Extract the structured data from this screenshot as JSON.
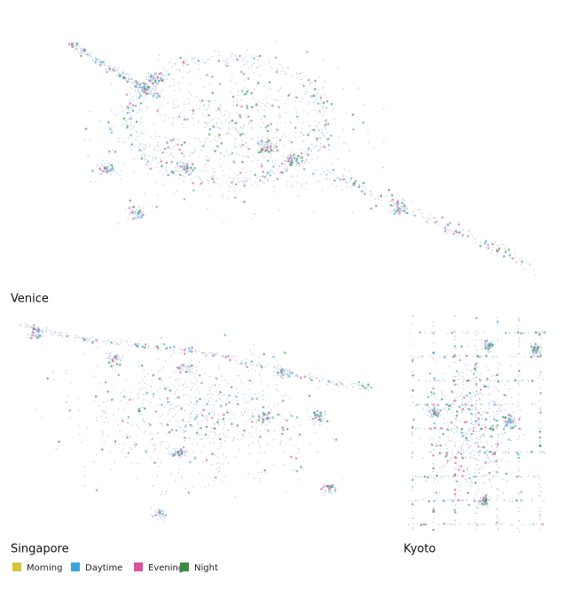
{
  "maps": [
    {
      "label": "Venice"
    },
    {
      "label": "Singapore"
    },
    {
      "label": "Kyoto"
    }
  ],
  "legend": [
    {
      "label": "Morning",
      "color": "#d6c43c"
    },
    {
      "label": "Daytime",
      "color": "#3da3d8"
    },
    {
      "label": "Evening",
      "color": "#d9539f"
    },
    {
      "label": "Night",
      "color": "#3b8c40"
    }
  ]
}
